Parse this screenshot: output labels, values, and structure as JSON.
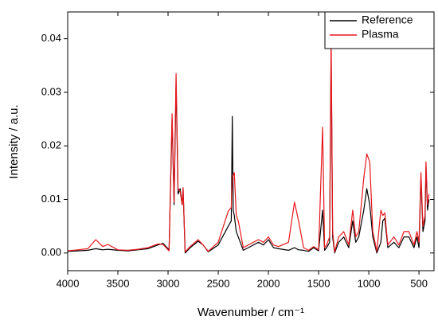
{
  "chart_data": {
    "type": "line",
    "xlabel": "Wavenumber  / cm⁻¹",
    "ylabel": "Intensity  / a.u.",
    "x": [
      4000,
      3900,
      3800,
      3720,
      3650,
      3600,
      3500,
      3400,
      3300,
      3200,
      3100,
      3050,
      3000,
      2990,
      2960,
      2940,
      2920,
      2900,
      2880,
      2860,
      2850,
      2830,
      2780,
      2700,
      2650,
      2600,
      2500,
      2400,
      2370,
      2360,
      2350,
      2340,
      2320,
      2300,
      2250,
      2200,
      2100,
      2050,
      2000,
      1950,
      1900,
      1800,
      1740,
      1700,
      1650,
      1600,
      1550,
      1500,
      1460,
      1440,
      1420,
      1390,
      1375,
      1360,
      1340,
      1300,
      1250,
      1200,
      1160,
      1130,
      1100,
      1050,
      1020,
      990,
      960,
      920,
      880,
      860,
      840,
      810,
      750,
      700,
      650,
      600,
      550,
      520,
      500,
      480,
      460,
      440,
      430,
      415,
      400
    ],
    "series": [
      {
        "name": "Reference",
        "color": "#000000",
        "values": [
          0.0003,
          0.0004,
          0.0005,
          0.0008,
          0.0006,
          0.0007,
          0.0005,
          0.0004,
          0.0006,
          0.0008,
          0.0015,
          0.0018,
          0.0008,
          0.0005,
          0.025,
          0.009,
          0.032,
          0.011,
          0.012,
          0.009,
          0.012,
          0.0,
          0.001,
          0.0022,
          0.0015,
          0.0002,
          0.0015,
          0.005,
          0.006,
          0.0255,
          0.008,
          0.007,
          0.004,
          0.003,
          0.0005,
          0.001,
          0.002,
          0.0015,
          0.0025,
          0.001,
          0.0008,
          0.0005,
          0.001,
          0.0006,
          0.0005,
          0.0003,
          0.001,
          0.0004,
          0.008,
          0.0005,
          0.001,
          0.002,
          0.038,
          0.003,
          0.0,
          0.002,
          0.003,
          0.001,
          0.006,
          0.002,
          0.003,
          0.008,
          0.012,
          0.009,
          0.003,
          0.0,
          0.002,
          0.006,
          0.0065,
          0.001,
          0.002,
          0.001,
          0.003,
          0.003,
          0.001,
          0.003,
          0.001,
          0.014,
          0.004,
          0.006,
          0.016,
          0.008,
          0.01
        ]
      },
      {
        "name": "Plasma",
        "color": "#e8161b",
        "values": [
          0.0004,
          0.0006,
          0.0008,
          0.0025,
          0.0012,
          0.0016,
          0.0006,
          0.0005,
          0.0007,
          0.001,
          0.0017,
          0.0016,
          0.0006,
          0.0004,
          0.026,
          0.0095,
          0.0335,
          0.012,
          0.0115,
          0.009,
          0.0122,
          0.0002,
          0.0012,
          0.0025,
          0.0015,
          0.0003,
          0.002,
          0.0078,
          0.0085,
          0.014,
          0.0145,
          0.015,
          0.007,
          0.006,
          0.001,
          0.0015,
          0.0025,
          0.002,
          0.003,
          0.0015,
          0.0012,
          0.002,
          0.0095,
          0.006,
          0.001,
          0.0005,
          0.0012,
          0.0006,
          0.0235,
          0.001,
          0.0015,
          0.003,
          0.0405,
          0.004,
          0.0002,
          0.003,
          0.004,
          0.0015,
          0.008,
          0.003,
          0.004,
          0.014,
          0.0185,
          0.017,
          0.004,
          0.0003,
          0.008,
          0.007,
          0.0075,
          0.0015,
          0.003,
          0.0015,
          0.004,
          0.004,
          0.0015,
          0.004,
          0.002,
          0.015,
          0.005,
          0.007,
          0.017,
          0.009,
          0.011
        ]
      }
    ],
    "xlim": [
      4000,
      350
    ],
    "xticks": [
      4000,
      3500,
      3000,
      2500,
      2000,
      1500,
      1000,
      500
    ],
    "ylim": [
      -0.0033,
      0.045
    ],
    "yticks": [
      {
        "value": 0,
        "label": "0.00"
      },
      0.01,
      0.02,
      0.03,
      0.04
    ],
    "grid": false,
    "legend": "upper right"
  }
}
